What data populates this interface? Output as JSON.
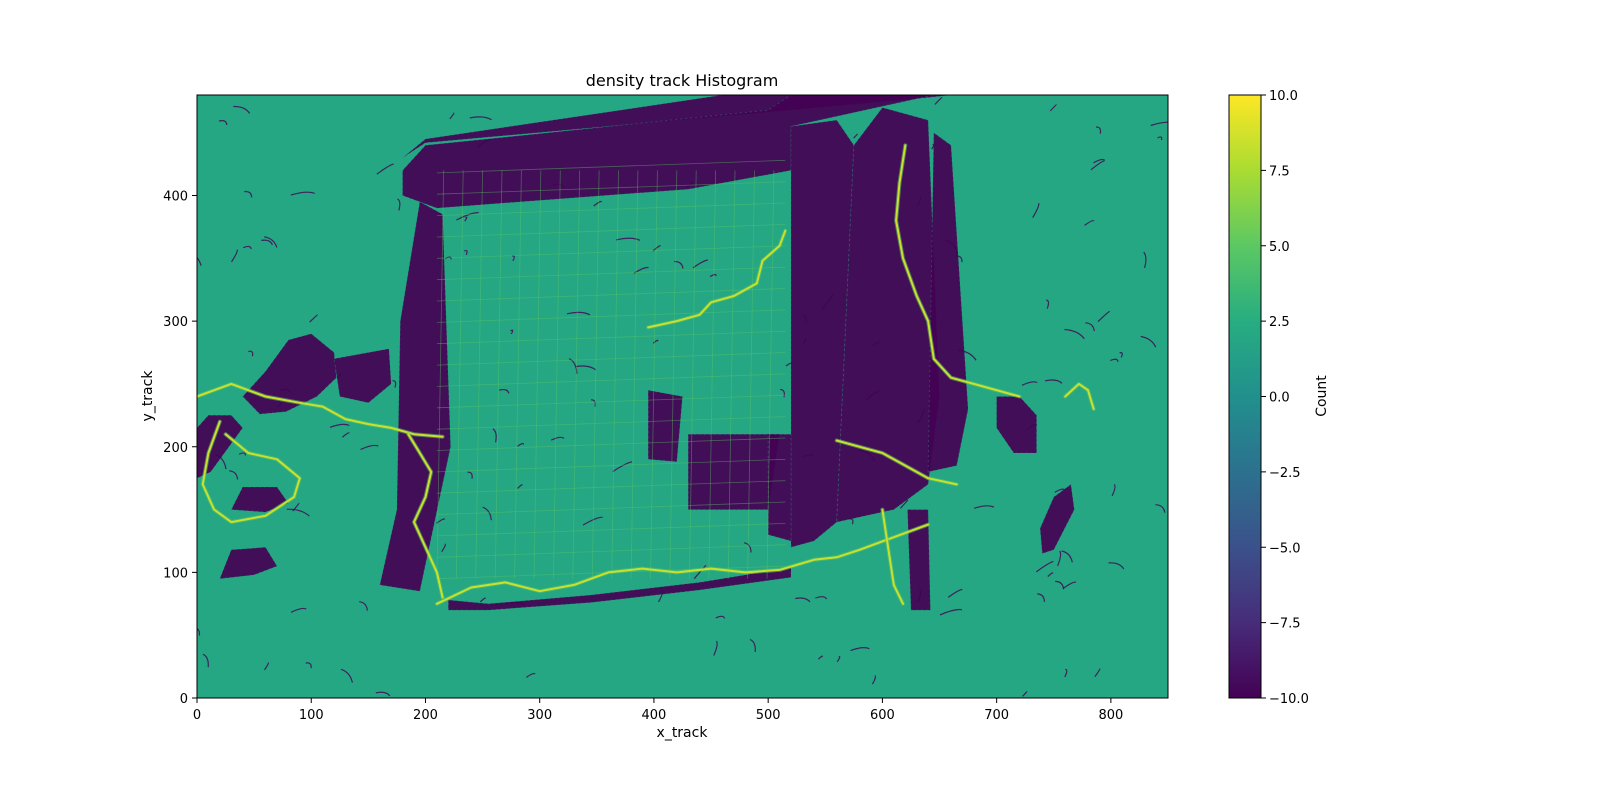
{
  "chart_data": {
    "type": "heatmap",
    "title": "density track Histogram",
    "xlabel": "x_track",
    "ylabel": "y_track",
    "xlim": [
      0,
      850
    ],
    "ylim": [
      0,
      480
    ],
    "x_ticks": [
      0,
      100,
      200,
      300,
      400,
      500,
      600,
      700,
      800
    ],
    "y_ticks": [
      0,
      100,
      200,
      300,
      400
    ],
    "grid": false,
    "colormap": "viridis",
    "colorbar": {
      "label": "Count",
      "range": [
        -10.0,
        10.0
      ],
      "ticks": [
        -10.0,
        -7.5,
        -5.0,
        -2.5,
        0.0,
        2.5,
        5.0,
        7.5,
        10.0
      ],
      "tick_labels": [
        "−10.0",
        "−7.5",
        "−5.0",
        "−2.5",
        "0.0",
        "2.5",
        "5.0",
        "7.5",
        "10.0"
      ]
    },
    "background_value": 2.0,
    "low_value": -10.0,
    "high_value": 8.5,
    "regions_low": [
      {
        "name": "top-rail",
        "polygon": [
          [
            180,
            430
          ],
          [
            200,
            442
          ],
          [
            520,
            468
          ],
          [
            640,
            478
          ],
          [
            660,
            480
          ],
          [
            460,
            480
          ],
          [
            200,
            445
          ]
        ]
      },
      {
        "name": "top-band",
        "polygon": [
          [
            180,
            420
          ],
          [
            200,
            440
          ],
          [
            500,
            468
          ],
          [
            520,
            480
          ],
          [
            645,
            480
          ],
          [
            520,
            455
          ],
          [
            520,
            420
          ],
          [
            430,
            405
          ],
          [
            210,
            390
          ],
          [
            180,
            400
          ]
        ]
      },
      {
        "name": "left-wall",
        "polygon": [
          [
            160,
            90
          ],
          [
            195,
            85
          ],
          [
            222,
            200
          ],
          [
            215,
            385
          ],
          [
            195,
            395
          ],
          [
            178,
            300
          ],
          [
            175,
            150
          ]
        ]
      },
      {
        "name": "bottom-edge",
        "polygon": [
          [
            220,
            78
          ],
          [
            255,
            75
          ],
          [
            345,
            82
          ],
          [
            440,
            92
          ],
          [
            520,
            104
          ],
          [
            520,
            96
          ],
          [
            440,
            86
          ],
          [
            345,
            76
          ],
          [
            255,
            70
          ],
          [
            220,
            70
          ]
        ]
      },
      {
        "name": "left-blob-1",
        "polygon": [
          [
            40,
            240
          ],
          [
            60,
            260
          ],
          [
            80,
            285
          ],
          [
            100,
            290
          ],
          [
            120,
            275
          ],
          [
            122,
            255
          ],
          [
            105,
            240
          ],
          [
            78,
            228
          ],
          [
            55,
            226
          ]
        ]
      },
      {
        "name": "left-blob-2",
        "polygon": [
          [
            120,
            270
          ],
          [
            150,
            275
          ],
          [
            168,
            278
          ],
          [
            170,
            250
          ],
          [
            150,
            235
          ],
          [
            125,
            240
          ]
        ]
      },
      {
        "name": "left-edge-blob",
        "polygon": [
          [
            0,
            175
          ],
          [
            12,
            180
          ],
          [
            28,
            200
          ],
          [
            40,
            215
          ],
          [
            30,
            225
          ],
          [
            10,
            225
          ],
          [
            0,
            215
          ]
        ]
      },
      {
        "name": "left-small-blob",
        "polygon": [
          [
            30,
            150
          ],
          [
            60,
            148
          ],
          [
            80,
            155
          ],
          [
            70,
            168
          ],
          [
            40,
            168
          ]
        ]
      },
      {
        "name": "right-slab-1",
        "polygon": [
          [
            520,
            120
          ],
          [
            540,
            125
          ],
          [
            560,
            140
          ],
          [
            575,
            440
          ],
          [
            560,
            460
          ],
          [
            520,
            455
          ],
          [
            520,
            400
          ]
        ]
      },
      {
        "name": "right-slab-2",
        "polygon": [
          [
            560,
            140
          ],
          [
            610,
            150
          ],
          [
            640,
            170
          ],
          [
            650,
            240
          ],
          [
            640,
            460
          ],
          [
            600,
            470
          ],
          [
            575,
            440
          ]
        ]
      },
      {
        "name": "right-strip",
        "polygon": [
          [
            640,
            180
          ],
          [
            665,
            185
          ],
          [
            675,
            230
          ],
          [
            660,
            440
          ],
          [
            645,
            450
          ]
        ]
      },
      {
        "name": "mid-block-1",
        "polygon": [
          [
            395,
            190
          ],
          [
            420,
            188
          ],
          [
            425,
            240
          ],
          [
            395,
            245
          ]
        ]
      },
      {
        "name": "mid-block-2",
        "polygon": [
          [
            430,
            150
          ],
          [
            500,
            150
          ],
          [
            510,
            210
          ],
          [
            430,
            210
          ]
        ]
      },
      {
        "name": "mid-block-3",
        "polygon": [
          [
            500,
            130
          ],
          [
            520,
            125
          ],
          [
            520,
            210
          ],
          [
            500,
            210
          ]
        ]
      },
      {
        "name": "bottom-leg",
        "polygon": [
          [
            625,
            70
          ],
          [
            642,
            70
          ],
          [
            640,
            150
          ],
          [
            622,
            150
          ]
        ]
      },
      {
        "name": "right-blob-1",
        "polygon": [
          [
            700,
            240
          ],
          [
            720,
            240
          ],
          [
            735,
            225
          ],
          [
            735,
            195
          ],
          [
            715,
            195
          ],
          [
            700,
            215
          ]
        ]
      },
      {
        "name": "right-blob-2",
        "polygon": [
          [
            740,
            115
          ],
          [
            750,
            118
          ],
          [
            768,
            150
          ],
          [
            765,
            170
          ],
          [
            750,
            160
          ],
          [
            738,
            135
          ]
        ]
      },
      {
        "name": "bottom-left-blob",
        "polygon": [
          [
            20,
            95
          ],
          [
            50,
            98
          ],
          [
            70,
            105
          ],
          [
            60,
            120
          ],
          [
            30,
            118
          ]
        ]
      }
    ],
    "regions_high": [
      {
        "name": "bottom-path",
        "polyline": [
          [
            210,
            75
          ],
          [
            240,
            88
          ],
          [
            270,
            92
          ],
          [
            300,
            85
          ],
          [
            330,
            90
          ],
          [
            360,
            100
          ],
          [
            390,
            103
          ],
          [
            420,
            100
          ],
          [
            450,
            103
          ],
          [
            480,
            100
          ],
          [
            510,
            102
          ],
          [
            540,
            110
          ],
          [
            560,
            112
          ],
          [
            580,
            118
          ],
          [
            610,
            128
          ],
          [
            640,
            138
          ]
        ]
      },
      {
        "name": "left-path",
        "polyline": [
          [
            0,
            240
          ],
          [
            30,
            250
          ],
          [
            60,
            240
          ],
          [
            90,
            235
          ],
          [
            110,
            232
          ],
          [
            130,
            222
          ],
          [
            150,
            218
          ],
          [
            170,
            215
          ],
          [
            190,
            210
          ],
          [
            215,
            208
          ]
        ]
      },
      {
        "name": "left-loop",
        "polyline": [
          [
            20,
            220
          ],
          [
            10,
            195
          ],
          [
            5,
            170
          ],
          [
            15,
            150
          ],
          [
            30,
            140
          ],
          [
            60,
            145
          ],
          [
            85,
            160
          ],
          [
            90,
            175
          ],
          [
            70,
            190
          ],
          [
            45,
            195
          ],
          [
            25,
            210
          ]
        ]
      },
      {
        "name": "stair-path",
        "polyline": [
          [
            395,
            295
          ],
          [
            420,
            300
          ],
          [
            440,
            305
          ],
          [
            450,
            315
          ],
          [
            470,
            320
          ],
          [
            490,
            330
          ],
          [
            495,
            348
          ],
          [
            510,
            360
          ],
          [
            515,
            372
          ]
        ]
      },
      {
        "name": "right-vertical",
        "polyline": [
          [
            620,
            440
          ],
          [
            615,
            410
          ],
          [
            612,
            380
          ],
          [
            618,
            350
          ],
          [
            630,
            320
          ],
          [
            640,
            300
          ],
          [
            645,
            270
          ],
          [
            660,
            255
          ],
          [
            680,
            250
          ],
          [
            700,
            245
          ],
          [
            720,
            240
          ]
        ]
      },
      {
        "name": "right-bottom",
        "polyline": [
          [
            600,
            150
          ],
          [
            605,
            120
          ],
          [
            610,
            90
          ],
          [
            618,
            75
          ]
        ]
      },
      {
        "name": "left-wall-path",
        "polyline": [
          [
            185,
            210
          ],
          [
            195,
            195
          ],
          [
            205,
            180
          ],
          [
            200,
            160
          ],
          [
            190,
            140
          ],
          [
            200,
            120
          ],
          [
            210,
            100
          ],
          [
            215,
            80
          ]
        ]
      },
      {
        "name": "mid-right-path",
        "polyline": [
          [
            560,
            205
          ],
          [
            580,
            200
          ],
          [
            600,
            195
          ],
          [
            620,
            185
          ],
          [
            640,
            175
          ],
          [
            665,
            170
          ]
        ]
      },
      {
        "name": "far-right-path",
        "polyline": [
          [
            760,
            240
          ],
          [
            772,
            250
          ],
          [
            780,
            245
          ],
          [
            785,
            230
          ]
        ]
      }
    ],
    "grid_lines_inner": {
      "x": [
        210,
        515
      ],
      "y": [
        95,
        420
      ],
      "spacing": 17
    }
  }
}
